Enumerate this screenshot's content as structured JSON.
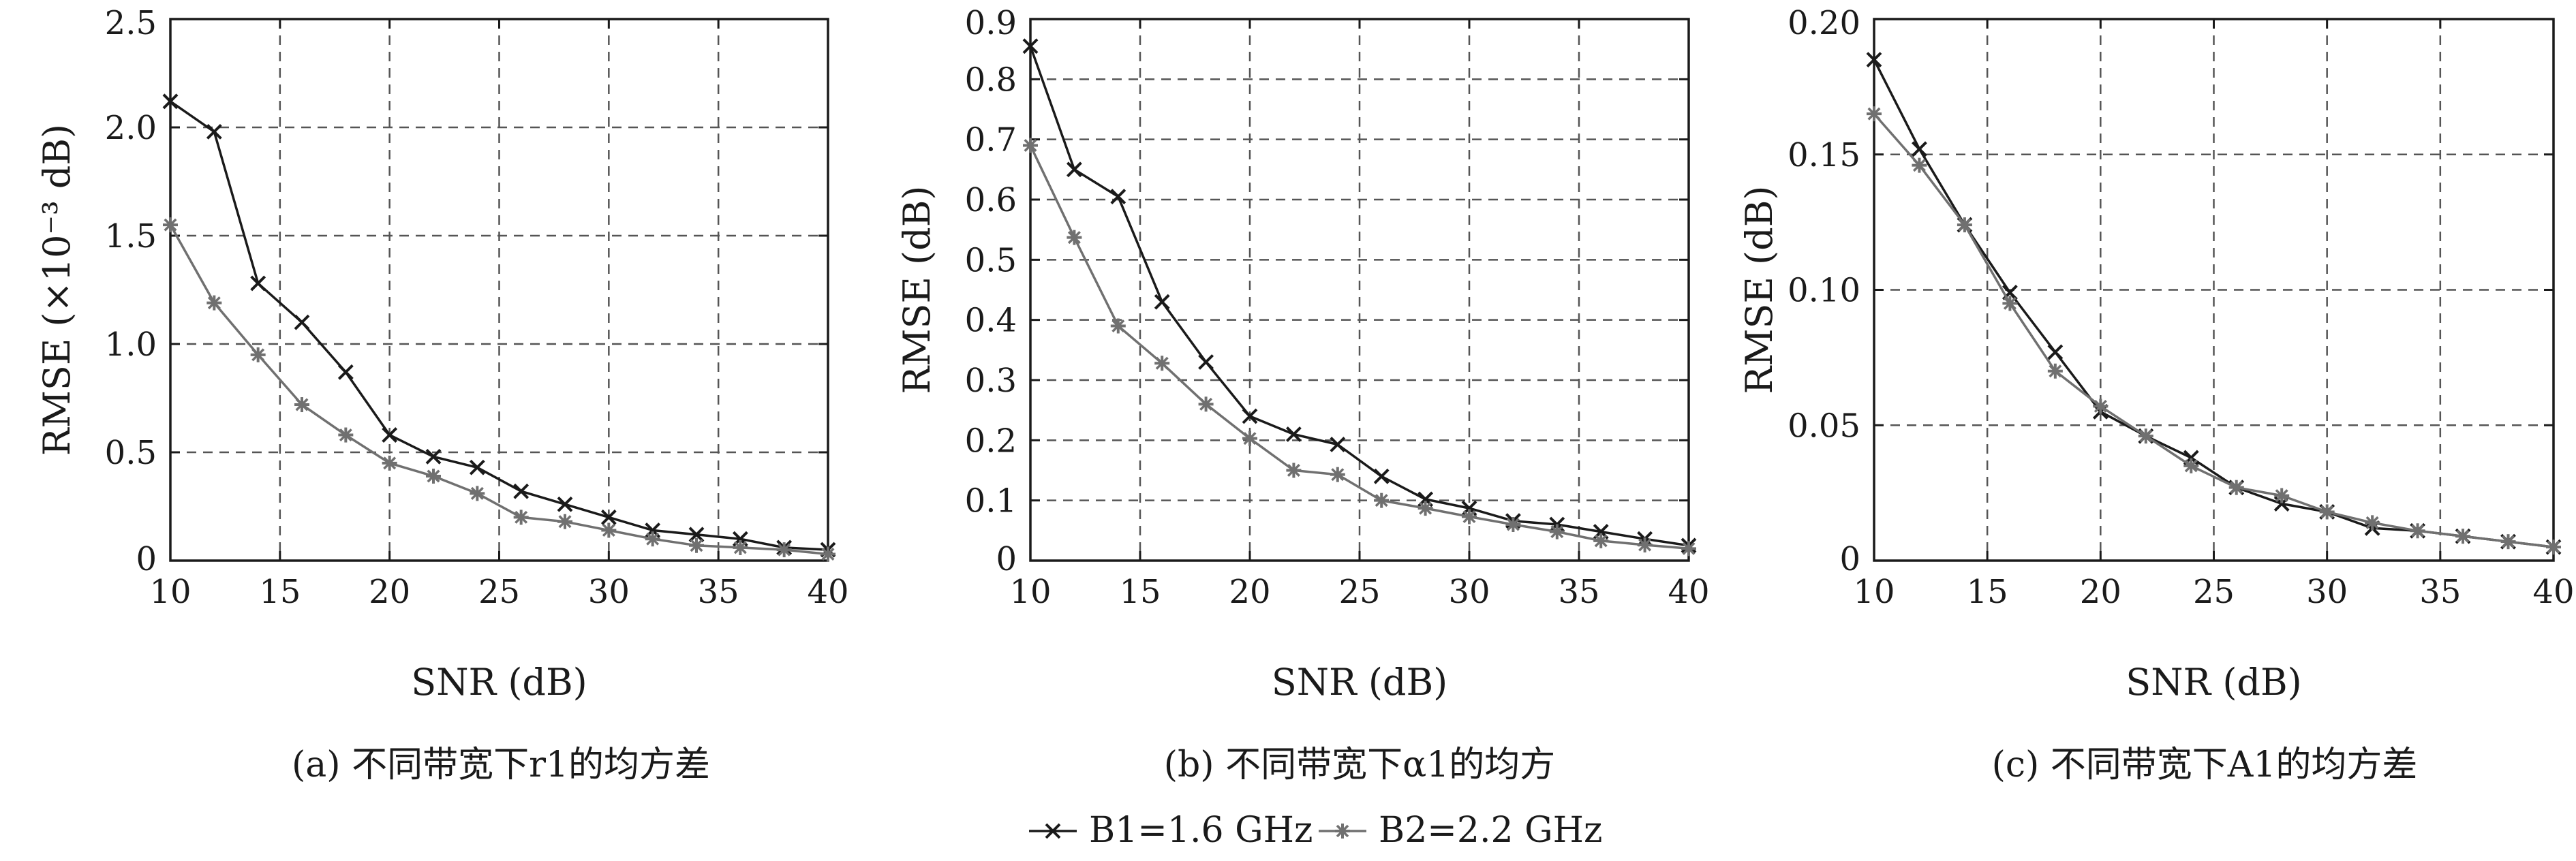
{
  "colors": {
    "B1": "#1a1a1a",
    "B2": "#707070",
    "grid": "#555555",
    "axis": "#1a1a1a"
  },
  "legend": {
    "items": [
      {
        "series": "B1",
        "marker": "x-marker",
        "label": "B1=1.6 GHz"
      },
      {
        "series": "B2",
        "marker": "star-marker",
        "label": "B2=2.2 GHz"
      }
    ]
  },
  "chart_data": [
    {
      "type": "line",
      "caption": "(a) 不同带宽下r1的均方差",
      "xlabel": "SNR (dB)",
      "ylabel": "RMSE (×10⁻³ dB)",
      "xlim": [
        10,
        40
      ],
      "ylim": [
        0,
        2.5
      ],
      "xticks": [
        10,
        15,
        20,
        25,
        30,
        35,
        40
      ],
      "xtick_labels": [
        "10",
        "15",
        "20",
        "25",
        "30",
        "35",
        "40"
      ],
      "yticks": [
        0,
        0.5,
        1.0,
        1.5,
        2.0,
        2.5
      ],
      "ytick_labels": [
        "0",
        "0.5",
        "1.0",
        "1.5",
        "2.0",
        "2.5"
      ],
      "grid": true,
      "x": [
        10,
        12,
        14,
        16,
        18,
        20,
        22,
        24,
        26,
        28,
        30,
        32,
        34,
        36,
        38,
        40
      ],
      "series": [
        {
          "name": "B1=1.6 GHz",
          "key": "B1",
          "marker": "x",
          "values": [
            2.12,
            1.98,
            1.28,
            1.1,
            0.87,
            0.58,
            0.48,
            0.43,
            0.32,
            0.26,
            0.2,
            0.14,
            0.12,
            0.1,
            0.06,
            0.05
          ]
        },
        {
          "name": "B2=2.2 GHz",
          "key": "B2",
          "marker": "star",
          "values": [
            1.55,
            1.19,
            0.95,
            0.72,
            0.58,
            0.45,
            0.39,
            0.31,
            0.2,
            0.18,
            0.14,
            0.1,
            0.07,
            0.06,
            0.05,
            0.03
          ]
        }
      ]
    },
    {
      "type": "line",
      "caption": "(b) 不同带宽下α1的均方",
      "xlabel": "SNR (dB)",
      "ylabel": "RMSE (dB)",
      "xlim": [
        10,
        40
      ],
      "ylim": [
        0,
        0.9
      ],
      "xticks": [
        10,
        15,
        20,
        25,
        30,
        35,
        40
      ],
      "xtick_labels": [
        "10",
        "15",
        "20",
        "25",
        "30",
        "35",
        "40"
      ],
      "yticks": [
        0,
        0.1,
        0.2,
        0.3,
        0.4,
        0.5,
        0.6,
        0.7,
        0.8,
        0.9
      ],
      "ytick_labels": [
        "0",
        "0.1",
        "0.2",
        "0.3",
        "0.4",
        "0.5",
        "0.6",
        "0.7",
        "0.8",
        "0.9"
      ],
      "grid": true,
      "x": [
        10,
        12,
        14,
        16,
        18,
        20,
        22,
        24,
        26,
        28,
        30,
        32,
        34,
        36,
        38,
        40
      ],
      "series": [
        {
          "name": "B1=1.6 GHz",
          "key": "B1",
          "marker": "x",
          "values": [
            0.855,
            0.65,
            0.605,
            0.43,
            0.33,
            0.24,
            0.21,
            0.193,
            0.14,
            0.102,
            0.087,
            0.066,
            0.06,
            0.048,
            0.036,
            0.025
          ]
        },
        {
          "name": "B2=2.2 GHz",
          "key": "B2",
          "marker": "star",
          "values": [
            0.69,
            0.537,
            0.39,
            0.328,
            0.26,
            0.203,
            0.15,
            0.143,
            0.1,
            0.087,
            0.073,
            0.06,
            0.048,
            0.033,
            0.026,
            0.02
          ]
        }
      ]
    },
    {
      "type": "line",
      "caption": "(c) 不同带宽下A1的均方差",
      "xlabel": "SNR (dB)",
      "ylabel": "RMSE (dB)",
      "xlim": [
        10,
        40
      ],
      "ylim": [
        0,
        0.2
      ],
      "xticks": [
        10,
        15,
        20,
        25,
        30,
        35,
        40
      ],
      "xtick_labels": [
        "10",
        "15",
        "20",
        "25",
        "30",
        "35",
        "40"
      ],
      "yticks": [
        0,
        0.05,
        0.1,
        0.15,
        0.2
      ],
      "ytick_labels": [
        "0",
        "0.05",
        "0.10",
        "0.15",
        "0.20"
      ],
      "grid": true,
      "x": [
        10,
        12,
        14,
        16,
        18,
        20,
        22,
        24,
        26,
        28,
        30,
        32,
        34,
        36,
        38,
        40
      ],
      "series": [
        {
          "name": "B1=1.6 GHz",
          "key": "B1",
          "marker": "x",
          "values": [
            0.185,
            0.152,
            0.124,
            0.099,
            0.077,
            0.055,
            0.046,
            0.038,
            0.027,
            0.021,
            0.018,
            0.012,
            0.011,
            0.009,
            0.007,
            0.005
          ]
        },
        {
          "name": "B2=2.2 GHz",
          "key": "B2",
          "marker": "star",
          "values": [
            0.165,
            0.146,
            0.124,
            0.095,
            0.07,
            0.057,
            0.046,
            0.035,
            0.027,
            0.024,
            0.018,
            0.014,
            0.011,
            0.009,
            0.007,
            0.005
          ]
        }
      ]
    }
  ]
}
